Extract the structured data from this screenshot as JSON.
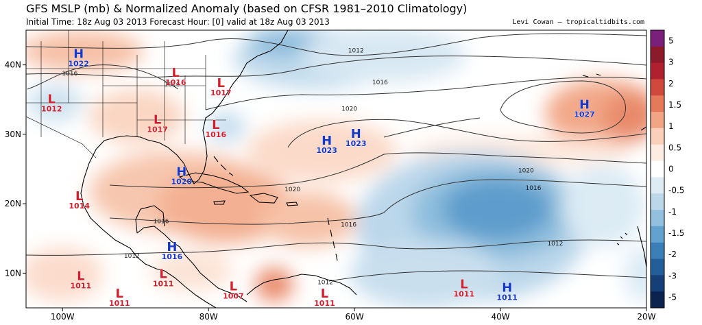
{
  "header": {
    "title": "GFS MSLP (mb) & Normalized Anomaly (based on CFSR 1981–2010 Climatology)",
    "subtitle": "Initial Time: 18z Aug 03 2013 Forecast Hour: [0] valid at 18z Aug 03 2013",
    "credit": "Levi Cowan – tropicaltidbits.com"
  },
  "map": {
    "lon_range": [
      -105,
      -20
    ],
    "lat_range": [
      5,
      45
    ],
    "lon_ticks": [
      {
        "lon": -100,
        "label": "100W"
      },
      {
        "lon": -80,
        "label": "80W"
      },
      {
        "lon": -60,
        "label": "60W"
      },
      {
        "lon": -40,
        "label": "40W"
      },
      {
        "lon": -20,
        "label": "20W"
      }
    ],
    "lat_ticks": [
      {
        "lat": 40,
        "label": "40N"
      },
      {
        "lat": 30,
        "label": "30N"
      },
      {
        "lat": 20,
        "label": "20N"
      },
      {
        "lat": 10,
        "label": "10N"
      }
    ],
    "systems": [
      {
        "type": "H",
        "value": "1022",
        "lon": -97.8,
        "lat": 41.0
      },
      {
        "type": "L",
        "value": "1016",
        "lon": -84.5,
        "lat": 38.3
      },
      {
        "type": "L",
        "value": "1012",
        "lon": -101.5,
        "lat": 34.5
      },
      {
        "type": "L",
        "value": "1017",
        "lon": -78.3,
        "lat": 36.8
      },
      {
        "type": "L",
        "value": "1017",
        "lon": -87.0,
        "lat": 31.5
      },
      {
        "type": "L",
        "value": "1016",
        "lon": -79.0,
        "lat": 30.8
      },
      {
        "type": "H",
        "value": "1023",
        "lon": -63.8,
        "lat": 28.5
      },
      {
        "type": "H",
        "value": "1023",
        "lon": -59.8,
        "lat": 29.5
      },
      {
        "type": "H",
        "value": "1027",
        "lon": -28.5,
        "lat": 33.7
      },
      {
        "type": "H",
        "value": "1020",
        "lon": -83.7,
        "lat": 24.0
      },
      {
        "type": "L",
        "value": "1014",
        "lon": -97.7,
        "lat": 20.5
      },
      {
        "type": "H",
        "value": "1016",
        "lon": -85.0,
        "lat": 13.2
      },
      {
        "type": "L",
        "value": "1011",
        "lon": -97.5,
        "lat": 9.0
      },
      {
        "type": "L",
        "value": "1011",
        "lon": -92.2,
        "lat": 6.5
      },
      {
        "type": "L",
        "value": "1011",
        "lon": -86.2,
        "lat": 9.3
      },
      {
        "type": "L",
        "value": "1007",
        "lon": -76.6,
        "lat": 7.5
      },
      {
        "type": "L",
        "value": "1011",
        "lon": -64.1,
        "lat": 6.5
      },
      {
        "type": "L",
        "value": "1011",
        "lon": -45.0,
        "lat": 7.8
      },
      {
        "type": "H",
        "value": "1011",
        "lon": -39.1,
        "lat": 7.3
      }
    ],
    "isobar_labels": [
      {
        "value": "1012",
        "lon": -59.8,
        "lat": 42.1
      },
      {
        "value": "1016",
        "lon": -99.0,
        "lat": 38.8
      },
      {
        "value": "1016",
        "lon": -85.0,
        "lat": 37.2
      },
      {
        "value": "1016",
        "lon": -56.5,
        "lat": 37.5
      },
      {
        "value": "1020",
        "lon": -60.7,
        "lat": 33.7
      },
      {
        "value": "1020",
        "lon": -36.5,
        "lat": 24.8
      },
      {
        "value": "1020",
        "lon": -68.5,
        "lat": 22.1
      },
      {
        "value": "1016",
        "lon": -35.5,
        "lat": 22.3
      },
      {
        "value": "1016",
        "lon": -86.5,
        "lat": 17.5
      },
      {
        "value": "1016",
        "lon": -60.8,
        "lat": 17.0
      },
      {
        "value": "1012",
        "lon": -90.5,
        "lat": 12.5
      },
      {
        "value": "1012",
        "lon": -32.5,
        "lat": 14.3
      },
      {
        "value": "1012",
        "lon": -64.0,
        "lat": 8.7
      }
    ]
  },
  "colorbar": {
    "labels": [
      "5",
      "3",
      "2",
      "1.5",
      "1",
      "0.5",
      "0",
      "-0.5",
      "-1",
      "-1.5",
      "-2",
      "-3",
      "-5"
    ],
    "colors": [
      "#7b1f7c",
      "#8b1a2b",
      "#b0202e",
      "#cf4a3c",
      "#e57a5a",
      "#f2a584",
      "#fad0bb",
      "#fdece2",
      "#ffffff",
      "#deebf3",
      "#bcd7e8",
      "#92c0de",
      "#62a2cf",
      "#3a7fb8",
      "#235d9a",
      "#163f78",
      "#0c2350"
    ]
  }
}
